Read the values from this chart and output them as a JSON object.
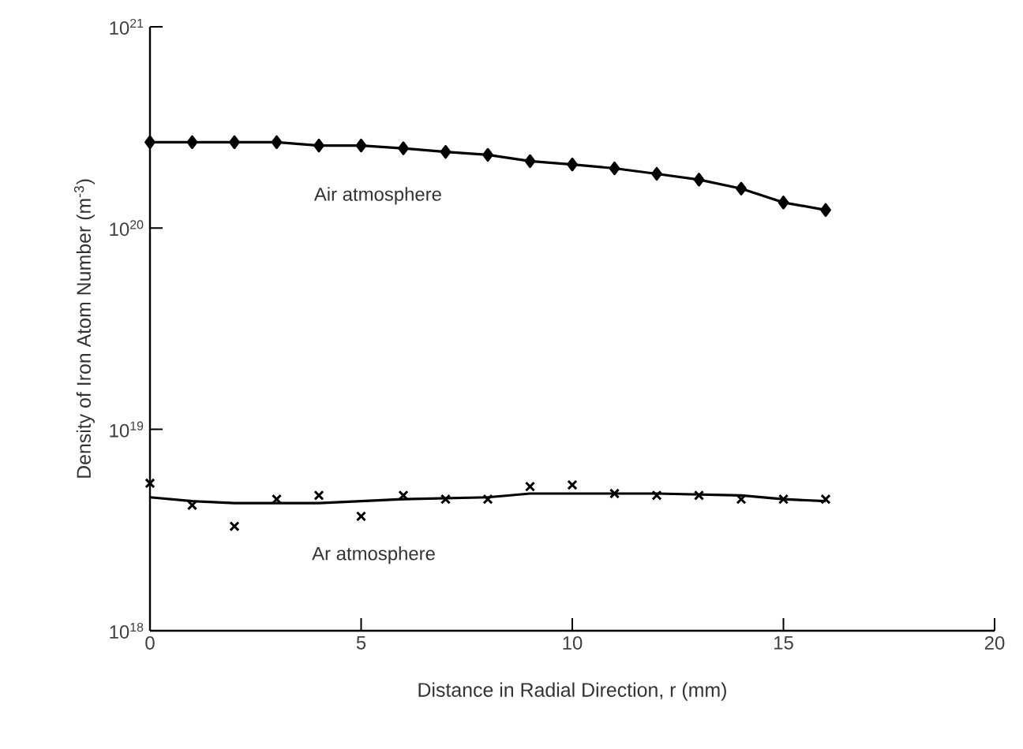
{
  "chart_data": {
    "type": "line",
    "xlabel": "Distance in Radial Direction, r (mm)",
    "ylabel": "Density of Iron Atom Number (m$^{-3}$)",
    "log": "y",
    "xlim": [
      0,
      20
    ],
    "xticks": [
      0,
      5,
      10,
      15,
      20
    ],
    "ylim": [
      1e+18,
      1e+21
    ],
    "yticks": [
      {
        "value": 1e+18,
        "label": "10$^{18}$"
      },
      {
        "value": 1e+19,
        "label": "10$^{19}$"
      },
      {
        "value": 1e+20,
        "label": "10$^{20}$"
      },
      {
        "value": 1e+21,
        "label": "10$^{21}$"
      }
    ],
    "series": [
      {
        "marker": "diamond",
        "color": "#000000",
        "x": [
          0,
          1,
          2,
          3,
          4,
          5,
          6,
          7,
          8,
          9,
          10,
          11,
          12,
          13,
          14,
          15,
          16
        ],
        "values": [
          2.67e+20,
          2.67e+20,
          2.67e+20,
          2.67e+20,
          2.57e+20,
          2.57e+20,
          2.49e+20,
          2.39e+20,
          2.31e+20,
          2.15e+20,
          2.07e+20,
          1.98e+20,
          1.86e+20,
          1.74e+20,
          1.57e+20,
          1.34e+20,
          1.23e+20
        ]
      },
      {
        "marker": "none",
        "color": "#000000",
        "x": [
          0,
          1,
          2,
          4,
          5,
          6,
          8,
          9,
          12,
          14,
          15,
          16
        ],
        "values": [
          4.6e+18,
          4.4e+18,
          4.3e+18,
          4.3e+18,
          4.4e+18,
          4.5e+18,
          4.6e+18,
          4.8e+18,
          4.8e+18,
          4.7e+18,
          4.5e+18,
          4.4e+18
        ]
      },
      {
        "type": "scatter",
        "marker": "cross",
        "color": "#000000",
        "x": [
          0,
          1,
          2,
          3,
          4,
          5,
          6,
          7,
          8,
          9,
          10,
          11,
          12,
          13,
          14,
          15,
          16
        ],
        "values": [
          5.4e+18,
          4.2e+18,
          3.3e+18,
          4.5e+18,
          4.7e+18,
          3.7e+18,
          4.7e+18,
          4.5e+18,
          4.5e+18,
          5.2e+18,
          5.3e+18,
          4.8e+18,
          4.7e+18,
          4.7e+18,
          4.5e+18,
          4.5e+18,
          4.5e+18
        ]
      }
    ],
    "annotations": [
      "Air atmosphere",
      "Ar atmosphere"
    ]
  }
}
